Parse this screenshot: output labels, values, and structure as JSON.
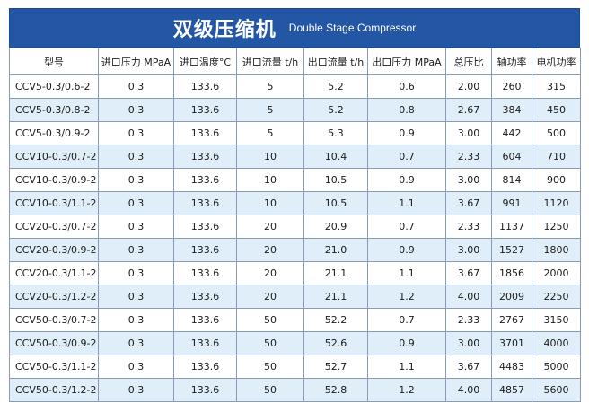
{
  "title": {
    "zh": "双级压缩机",
    "en": "Double Stage Compressor"
  },
  "colors": {
    "banner": "#2456a6",
    "alt_row": "#dfeef8",
    "border": "#8a9bb5"
  },
  "headers": [
    "型号",
    "进口压力 MPaA",
    "进口温度°C",
    "进口流量 t/h",
    "出口流量 t/h",
    "出口压力 MPaA",
    "总压比",
    "轴功率",
    "电机功率"
  ],
  "rows": [
    [
      "CCV5-0.3/0.6-2",
      "0.3",
      "133.6",
      "5",
      "5.2",
      "0.6",
      "2.00",
      "260",
      "315"
    ],
    [
      "CCV5-0.3/0.8-2",
      "0.3",
      "133.6",
      "5",
      "5.2",
      "0.8",
      "2.67",
      "384",
      "450"
    ],
    [
      "CCV5-0.3/0.9-2",
      "0.3",
      "133.6",
      "5",
      "5.3",
      "0.9",
      "3.00",
      "442",
      "500"
    ],
    [
      "CCV10-0.3/0.7-2",
      "0.3",
      "133.6",
      "10",
      "10.4",
      "0.7",
      "2.33",
      "604",
      "710"
    ],
    [
      "CCV10-0.3/0.9-2",
      "0.3",
      "133.6",
      "10",
      "10.5",
      "0.9",
      "3.00",
      "814",
      "900"
    ],
    [
      "CCV10-0.3/1.1-2",
      "0.3",
      "133.6",
      "10",
      "10.5",
      "1.1",
      "3.67",
      "991",
      "1120"
    ],
    [
      "CCV20-0.3/0.7-2",
      "0.3",
      "133.6",
      "20",
      "20.9",
      "0.7",
      "2.33",
      "1137",
      "1250"
    ],
    [
      "CCV20-0.3/0.9-2",
      "0.3",
      "133.6",
      "20",
      "21.0",
      "0.9",
      "3.00",
      "1527",
      "1800"
    ],
    [
      "CCV20-0.3/1.1-2",
      "0.3",
      "133.6",
      "20",
      "21.1",
      "1.1",
      "3.67",
      "1856",
      "2000"
    ],
    [
      "CCV20-0.3/1.2-2",
      "0.3",
      "133.6",
      "20",
      "21.1",
      "1.2",
      "4.00",
      "2009",
      "2250"
    ],
    [
      "CCV50-0.3/0.7-2",
      "0.3",
      "133.6",
      "50",
      "52.2",
      "0.7",
      "2.33",
      "2767",
      "3150"
    ],
    [
      "CCV50-0.3/0.9-2",
      "0.3",
      "133.6",
      "50",
      "52.6",
      "0.9",
      "3.00",
      "3701",
      "4000"
    ],
    [
      "CCV50-0.3/1.1-2",
      "0.3",
      "133.6",
      "50",
      "52.7",
      "1.1",
      "3.67",
      "4483",
      "5000"
    ],
    [
      "CCV50-0.3/1.2-2",
      "0.3",
      "133.6",
      "50",
      "52.8",
      "1.2",
      "4.00",
      "4857",
      "5600"
    ]
  ]
}
